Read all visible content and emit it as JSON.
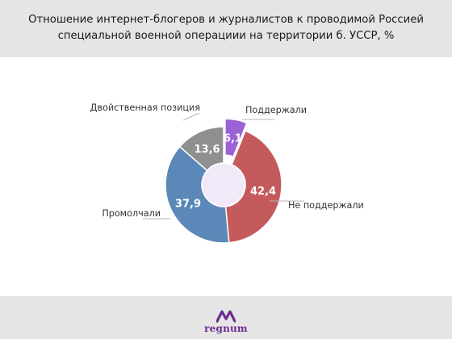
{
  "header": {
    "title_line1": "Отношение интернет-блогеров и журналистов к проводимой Россией",
    "title_line2": "специальной военной операциии на территории б. УССР, %"
  },
  "footer": {
    "logo_text": "regnum",
    "logo_icon": "regnum-logo-icon",
    "logo_color": "#6b2b8c"
  },
  "chart_data": {
    "type": "pie",
    "donut": true,
    "title": "Отношение интернет-блогеров и журналистов к проводимой Россией специальной военной операциии на территории б. УССР, %",
    "categories": [
      "Поддержали",
      "Не поддержали",
      "Промолчали",
      "Двойственная позиция"
    ],
    "values": [
      6.1,
      42.4,
      37.9,
      13.6
    ],
    "value_labels": [
      "6,1",
      "42,4",
      "37,9",
      "13,6"
    ],
    "colors": [
      "#9b62d6",
      "#c45a5c",
      "#5b88b8",
      "#8f8f8f"
    ],
    "center_color": "#f1e8f8",
    "exploded_slice": "Поддержали",
    "legend": "none"
  }
}
